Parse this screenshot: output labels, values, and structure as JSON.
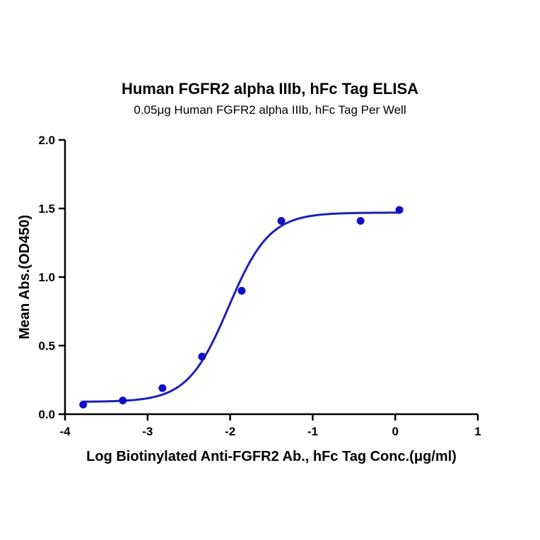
{
  "chart_data": {
    "type": "scatter",
    "title": "Human FGFR2 alpha IIIb, hFc Tag ELISA",
    "subtitle": "0.05μg Human FGFR2 alpha IIIb, hFc Tag Per Well",
    "xlabel": "Log Biotinylated  Anti-FGFR2 Ab., hFc Tag Conc.(μg/ml)",
    "ylabel": "Mean Abs.(OD450)",
    "xlim": [
      -4,
      1
    ],
    "ylim": [
      0,
      2
    ],
    "xticks": [
      "-4",
      "-3",
      "-2",
      "-1",
      "0",
      "1"
    ],
    "yticks": [
      "0.0",
      "0.5",
      "1.0",
      "1.5",
      "2.0"
    ],
    "grid": false,
    "points_color": "#1010c8",
    "curve_color": "#1f1fb4",
    "series": [
      {
        "x": [
          -3.78,
          -3.3,
          -2.82,
          -2.34,
          -1.86,
          -1.38,
          -0.42,
          0.05
        ],
        "y": [
          0.07,
          0.1,
          0.19,
          0.42,
          0.9,
          1.41,
          1.41,
          1.49
        ]
      }
    ],
    "fit": {
      "model": "4PL",
      "bottom": 0.09,
      "top": 1.47,
      "logEC50": -2.02,
      "hill": 1.75,
      "x_range": [
        -3.78,
        0.05
      ]
    }
  }
}
